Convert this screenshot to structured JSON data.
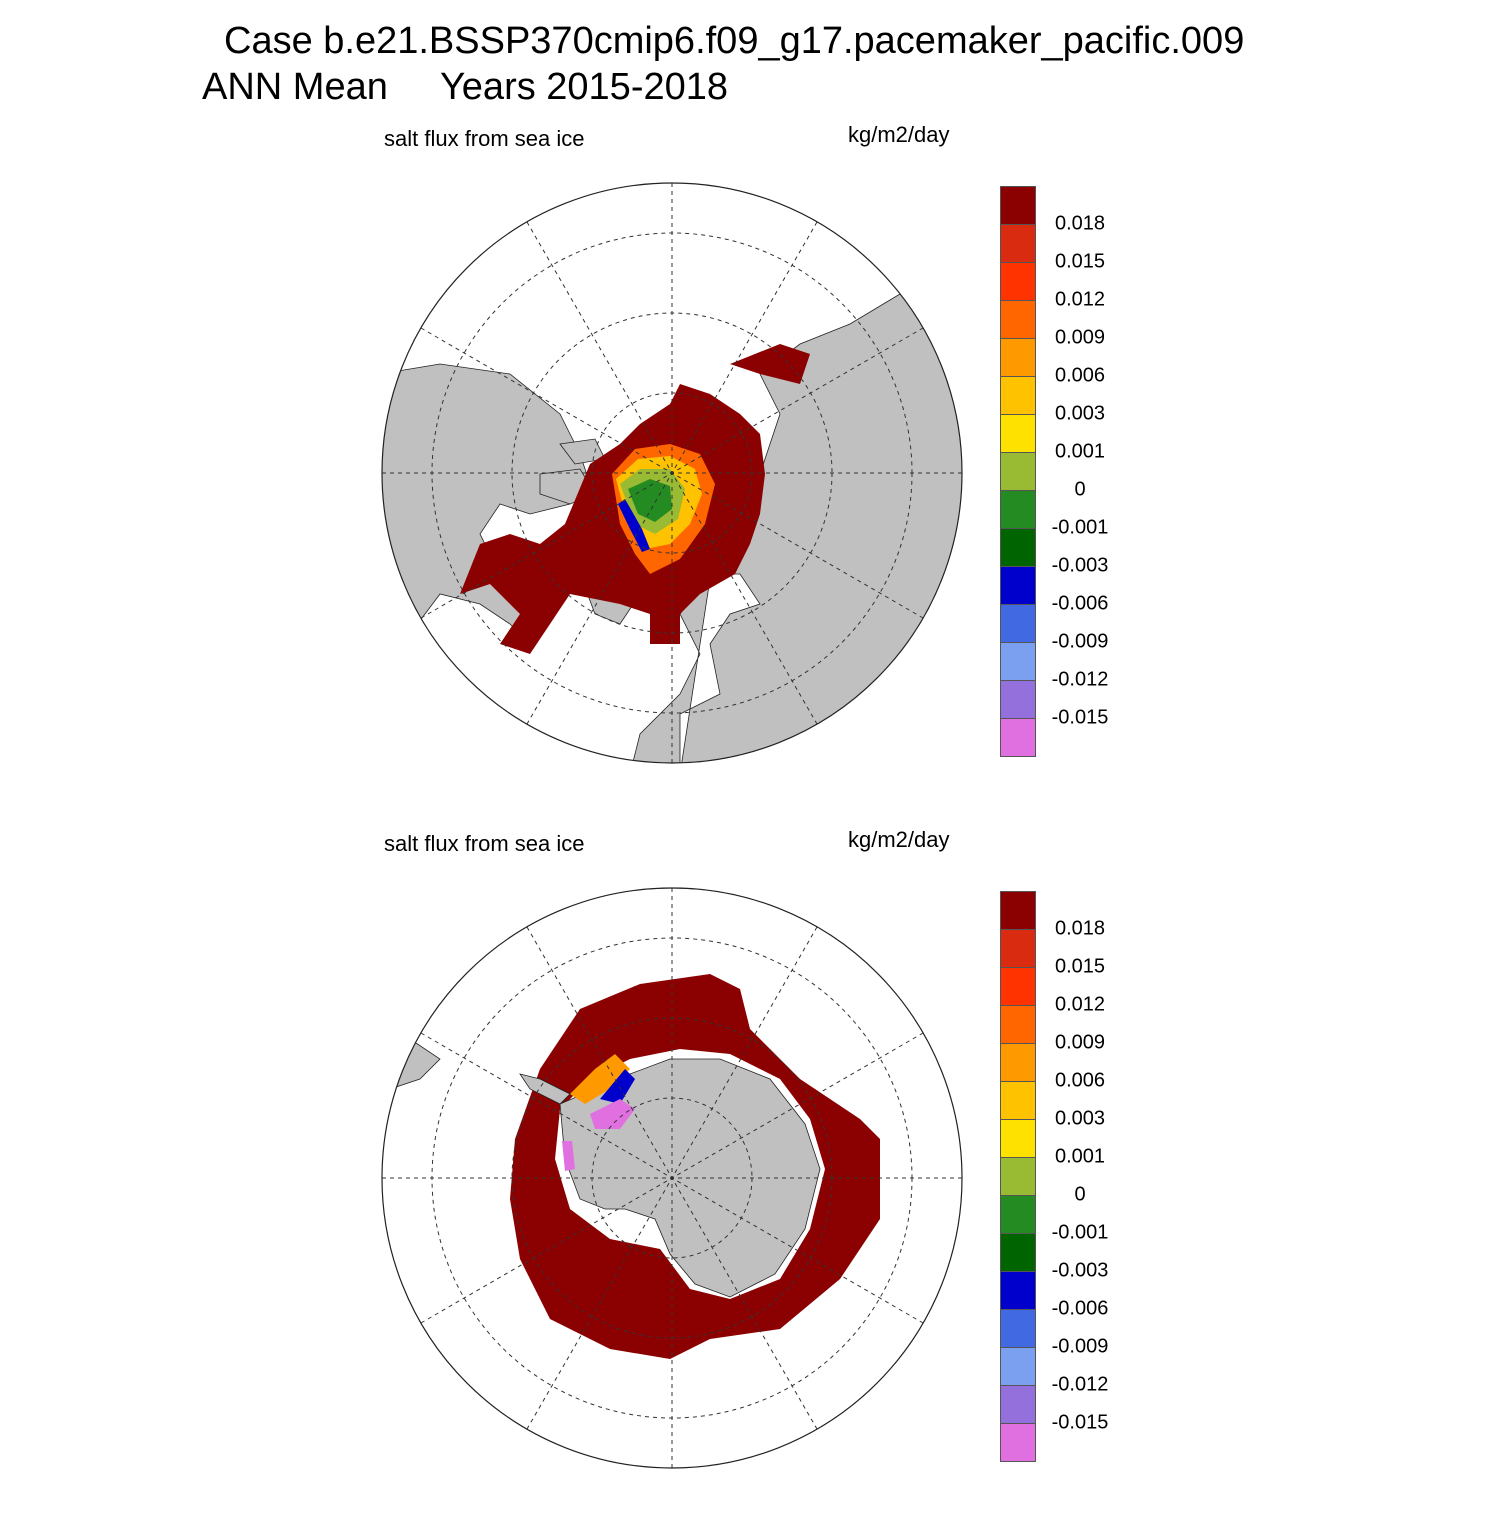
{
  "header": {
    "title": "Case b.e21.BSSP370cmip6.f09_g17.pacemaker_pacific.009",
    "subtitle": "ANN Mean     Years 2015-2018"
  },
  "panels": [
    {
      "region": "Northern Hemisphere",
      "left_label": "salt flux from sea ice",
      "right_label": "kg/m2/day"
    },
    {
      "region": "Southern Hemisphere",
      "left_label": "salt flux from sea ice",
      "right_label": "kg/m2/day"
    }
  ],
  "colorbar": {
    "labels": [
      "0.018",
      "0.015",
      "0.012",
      "0.009",
      "0.006",
      "0.003",
      "0.001",
      "0",
      "-0.001",
      "-0.003",
      "-0.006",
      "-0.009",
      "-0.012",
      "-0.015"
    ],
    "colors": [
      "#8b0000",
      "#d92b0f",
      "#ff3300",
      "#ff6600",
      "#ff9900",
      "#ffc200",
      "#ffe100",
      "#99bb33",
      "#238b22",
      "#006400",
      "#0000cd",
      "#4169e1",
      "#7ba0ef",
      "#9370db",
      "#e070df"
    ]
  },
  "styles": {
    "land_color": "#c0c0c0",
    "ocean_color": "#ffffff",
    "grid_color": "#333333"
  }
}
